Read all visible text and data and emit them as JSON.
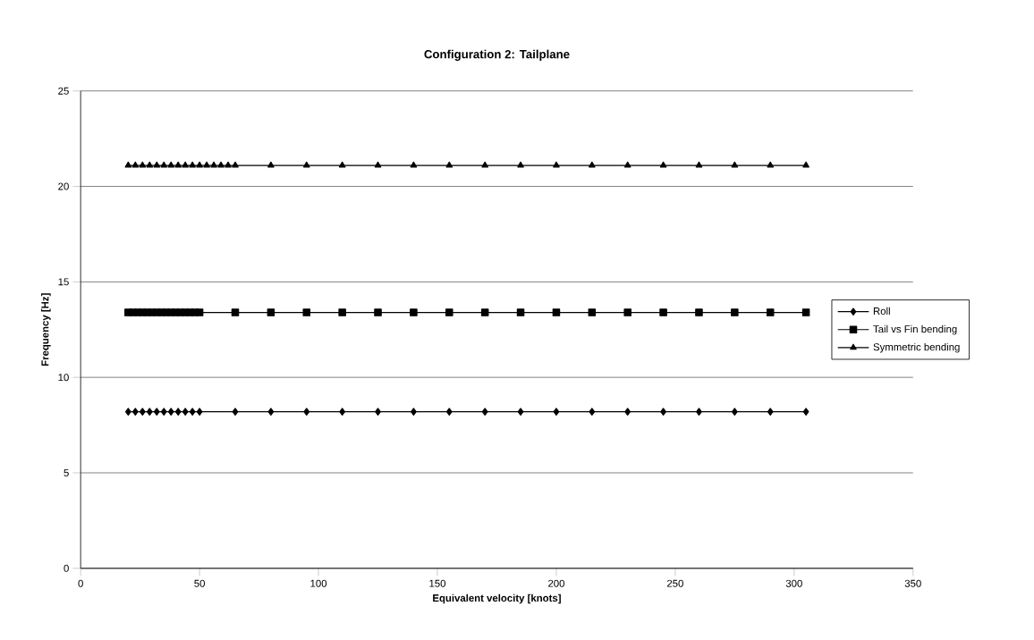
{
  "chart_data": {
    "type": "line",
    "title": "Configuration 2: Tailplane",
    "xlabel": "Equivalent velocity [knots]",
    "ylabel": "Frequency [Hz]",
    "xlim": [
      0,
      350
    ],
    "xticks": [
      0,
      50,
      100,
      150,
      200,
      250,
      300,
      350
    ],
    "ylim": [
      0,
      25
    ],
    "yticks": [
      0,
      5,
      10,
      15,
      20,
      25
    ],
    "grid": "y",
    "legend": "right",
    "series": [
      {
        "name": "Roll",
        "color": "#000000",
        "marker": "diamond",
        "x": [
          20,
          23,
          26,
          29,
          32,
          35,
          38,
          41,
          44,
          47,
          50,
          65,
          80,
          95,
          110,
          125,
          140,
          155,
          170,
          185,
          200,
          215,
          230,
          245,
          260,
          275,
          290,
          305
        ],
        "values": [
          8.2,
          8.2,
          8.2,
          8.2,
          8.2,
          8.2,
          8.2,
          8.2,
          8.2,
          8.2,
          8.2,
          8.2,
          8.2,
          8.2,
          8.2,
          8.2,
          8.2,
          8.2,
          8.2,
          8.2,
          8.2,
          8.2,
          8.2,
          8.2,
          8.2,
          8.2,
          8.2,
          8.2
        ]
      },
      {
        "name": "Tail vs Fin bending",
        "color": "#000000",
        "marker": "square",
        "x": [
          20,
          22,
          24,
          26,
          28,
          30,
          32,
          34,
          36,
          38,
          40,
          42,
          44,
          46,
          48,
          50,
          65,
          80,
          95,
          110,
          125,
          140,
          155,
          170,
          185,
          200,
          215,
          230,
          245,
          260,
          275,
          290,
          305
        ],
        "values": [
          13.4,
          13.4,
          13.4,
          13.4,
          13.4,
          13.4,
          13.4,
          13.4,
          13.4,
          13.4,
          13.4,
          13.4,
          13.4,
          13.4,
          13.4,
          13.4,
          13.4,
          13.4,
          13.4,
          13.4,
          13.4,
          13.4,
          13.4,
          13.4,
          13.4,
          13.4,
          13.4,
          13.4,
          13.4,
          13.4,
          13.4,
          13.4,
          13.4
        ]
      },
      {
        "name": "Symmetric bending",
        "color": "#000000",
        "marker": "triangle",
        "x": [
          20,
          23,
          26,
          29,
          32,
          35,
          38,
          41,
          44,
          47,
          50,
          53,
          56,
          59,
          62,
          65,
          80,
          95,
          110,
          125,
          140,
          155,
          170,
          185,
          200,
          215,
          230,
          245,
          260,
          275,
          290,
          305
        ],
        "values": [
          21.1,
          21.1,
          21.1,
          21.1,
          21.1,
          21.1,
          21.1,
          21.1,
          21.1,
          21.1,
          21.1,
          21.1,
          21.1,
          21.1,
          21.1,
          21.1,
          21.1,
          21.1,
          21.1,
          21.1,
          21.1,
          21.1,
          21.1,
          21.1,
          21.1,
          21.1,
          21.1,
          21.1,
          21.1,
          21.1,
          21.1,
          21.1
        ]
      }
    ]
  }
}
